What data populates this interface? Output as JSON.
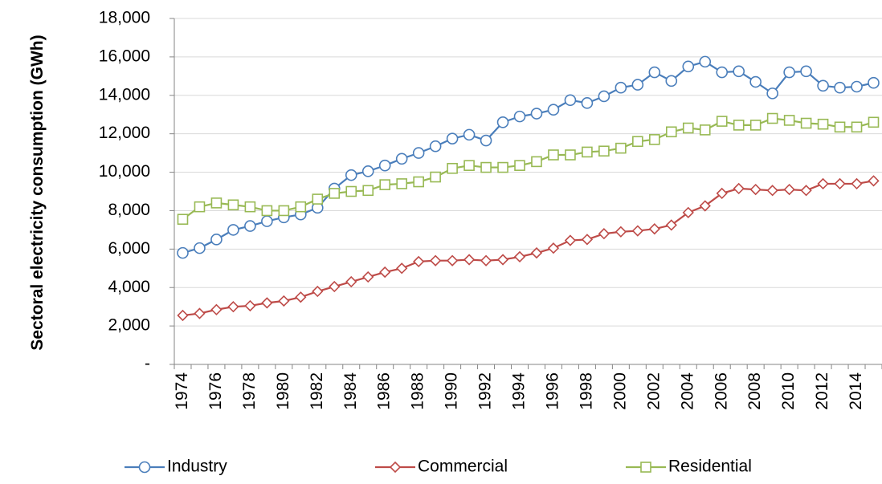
{
  "chart_data": {
    "type": "line",
    "y_label": "Sectoral electricity consumption (GWh)",
    "categories": [
      "1974",
      null,
      "1976",
      null,
      "1978",
      null,
      "1980",
      null,
      "1982",
      null,
      "1984",
      null,
      "1986",
      null,
      "1988",
      null,
      "1990",
      null,
      "1992",
      null,
      "1994",
      null,
      "1996",
      null,
      "1998",
      null,
      "2000",
      null,
      "2002",
      null,
      "2004",
      null,
      "2006",
      null,
      "2008",
      null,
      "2010",
      null,
      "2012",
      null,
      "2014",
      null
    ],
    "series": [
      {
        "name": "Industry",
        "color": "#4a7ebb",
        "marker": "circle",
        "values": [
          5800,
          6050,
          6500,
          7000,
          7200,
          7450,
          7650,
          7800,
          8150,
          9150,
          9850,
          10050,
          10350,
          10700,
          11000,
          11350,
          11750,
          11950,
          11650,
          12600,
          12900,
          13050,
          13250,
          13750,
          13600,
          13950,
          14400,
          14550,
          15200,
          14750,
          15500,
          15750,
          15200,
          15250,
          14700,
          14100,
          15200,
          15250,
          14500,
          14400,
          14450,
          14650
        ]
      },
      {
        "name": "Commercial",
        "color": "#be4b48",
        "marker": "diamond",
        "values": [
          2550,
          2650,
          2850,
          3000,
          3050,
          3200,
          3300,
          3500,
          3800,
          4050,
          4300,
          4550,
          4800,
          5000,
          5350,
          5400,
          5400,
          5450,
          5400,
          5450,
          5600,
          5800,
          6050,
          6450,
          6500,
          6800,
          6900,
          6950,
          7050,
          7250,
          7900,
          8250,
          8900,
          9150,
          9100,
          9050,
          9100,
          9050,
          9400,
          9400,
          9400,
          9550
        ]
      },
      {
        "name": "Residential",
        "color": "#98b954",
        "marker": "square",
        "values": [
          7550,
          8200,
          8400,
          8300,
          8200,
          8000,
          8000,
          8200,
          8600,
          8900,
          9000,
          9050,
          9350,
          9400,
          9500,
          9750,
          10200,
          10350,
          10250,
          10250,
          10350,
          10550,
          10900,
          10900,
          11050,
          11100,
          11250,
          11600,
          11700,
          12100,
          12300,
          12200,
          12650,
          12450,
          12450,
          12800,
          12700,
          12550,
          12500,
          12350,
          12350,
          12600
        ]
      }
    ],
    "ylim": [
      0,
      18000
    ],
    "yticks": [
      {
        "value": 0,
        "label": "-"
      },
      {
        "value": 2000,
        "label": "2,000"
      },
      {
        "value": 4000,
        "label": "4,000"
      },
      {
        "value": 6000,
        "label": "6,000"
      },
      {
        "value": 8000,
        "label": "8,000"
      },
      {
        "value": 10000,
        "label": "10,000"
      },
      {
        "value": 12000,
        "label": "12,000"
      },
      {
        "value": 14000,
        "label": "14,000"
      },
      {
        "value": 16000,
        "label": "16,000"
      },
      {
        "value": 18000,
        "label": "18,000"
      }
    ],
    "grid": true,
    "legend": "bottom"
  }
}
